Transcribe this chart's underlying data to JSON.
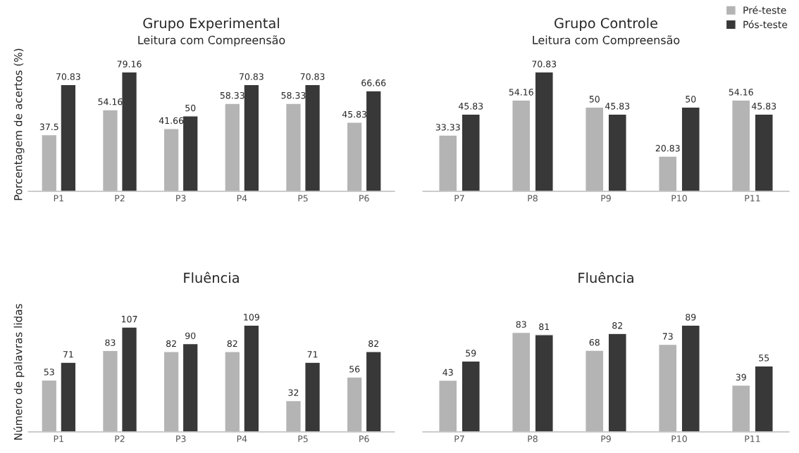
{
  "chart_data": [
    {
      "type": "bar",
      "title": "Grupo Experimental",
      "subtitle": "Leitura com Compreensão",
      "ylabel": "Porcentagem de acertos (%)",
      "categories": [
        "P1",
        "P2",
        "P3",
        "P4",
        "P5",
        "P6"
      ],
      "series": [
        {
          "color": "#b4b4b4",
          "values": [
            37.5,
            54.16,
            41.66,
            58.33,
            58.33,
            45.83
          ]
        },
        {
          "color": "#383838",
          "values": [
            70.83,
            79.16,
            50,
            70.83,
            70.83,
            66.66
          ]
        }
      ],
      "data_labels": true,
      "relative": false,
      "legend": false
    },
    {
      "type": "bar",
      "title": "Grupo Controle",
      "subtitle": "Leitura com Compreensão",
      "categories": [
        "P7",
        "P8",
        "P9",
        "P10",
        "P11"
      ],
      "series": [
        {
          "name": "Pré-teste",
          "color": "#b4b4b4",
          "values": [
            33.33,
            54.16,
            50,
            20.83,
            54.16
          ]
        },
        {
          "name": "Pós-teste",
          "color": "#383838",
          "values": [
            45.83,
            70.83,
            45.83,
            50,
            45.83
          ]
        }
      ],
      "data_labels": true,
      "legend": "top right"
    },
    {
      "type": "bar",
      "title": "Fluência",
      "ylabel": "Número de palavras lidas",
      "categories": [
        "P1",
        "P2",
        "P3",
        "P4",
        "P5",
        "P6"
      ],
      "series": [
        {
          "color": "#b4b4b4",
          "values": [
            53,
            83,
            82,
            82,
            32,
            56
          ]
        },
        {
          "color": "#383838",
          "values": [
            71,
            107,
            90,
            109,
            71,
            82
          ]
        }
      ],
      "data_labels": true,
      "legend": false
    },
    {
      "type": "bar",
      "title": "Fluência",
      "categories": [
        "P7",
        "P8",
        "P9",
        "P10",
        "P11"
      ],
      "series": [
        {
          "color": "#b4b4b4",
          "values": [
            43,
            83,
            68,
            73,
            39
          ]
        },
        {
          "color": "#383838",
          "values": [
            59,
            81,
            82,
            89,
            55
          ]
        }
      ],
      "data_labels": true,
      "legend": false
    }
  ]
}
